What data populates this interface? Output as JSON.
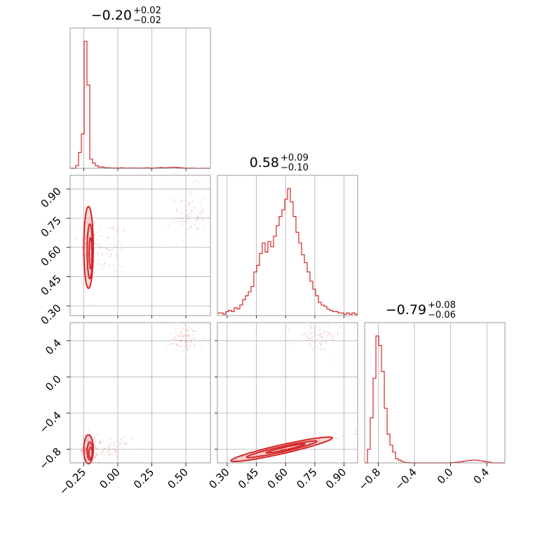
{
  "chart_data": {
    "type": "corner",
    "color": "#d62728",
    "grid": true,
    "parameters": [
      {
        "median": "−0.20",
        "plus": "+0.02",
        "minus": "−0.02",
        "range": [
          -0.35,
          0.68
        ],
        "ticks": [
          -0.25,
          0.0,
          0.25,
          0.5
        ],
        "tick_labels": [
          "−0.25",
          "0.00",
          "0.25",
          "0.50"
        ]
      },
      {
        "median": "0.58",
        "plus": "+0.09",
        "minus": "−0.10",
        "range": [
          0.25,
          0.97
        ],
        "ticks": [
          0.3,
          0.45,
          0.6,
          0.75,
          0.9
        ],
        "tick_labels": [
          "0.30",
          "0.45",
          "0.60",
          "0.75",
          "0.90"
        ]
      },
      {
        "median": "−0.79",
        "plus": "+0.08",
        "minus": "−0.06",
        "range": [
          -0.95,
          0.6
        ],
        "ticks": [
          -0.8,
          -0.4,
          0.0,
          0.4
        ],
        "tick_labels": [
          "−0.8",
          "−0.4",
          "0.0",
          "0.4"
        ]
      }
    ],
    "histograms": [
      {
        "edges": [
          -0.35,
          0.68
        ],
        "counts": [
          0,
          0,
          0.02,
          0.12,
          0.26,
          0.96,
          0.63,
          0.07,
          0.04,
          0.02,
          0.01,
          0.01,
          0.005,
          0.005,
          0.003,
          0.002,
          0.003,
          0.002,
          0.004,
          0.002,
          0.002,
          0.003,
          0.002,
          0.003,
          0.002,
          0.002,
          0.002,
          0.004,
          0.002,
          0.002,
          0.003,
          0.004,
          0.006,
          0.004,
          0.005,
          0.007,
          0.009,
          0.008,
          0.006,
          0.004,
          0.003,
          0.002,
          0,
          0.002,
          0.001,
          0,
          0,
          0.001,
          0,
          0
        ]
      },
      {
        "edges": [
          0.25,
          0.97
        ],
        "counts": [
          0.02,
          0.02,
          0.01,
          0.03,
          0.04,
          0.03,
          0.06,
          0.05,
          0.08,
          0.12,
          0.15,
          0.18,
          0.22,
          0.33,
          0.38,
          0.47,
          0.55,
          0.48,
          0.56,
          0.52,
          0.6,
          0.68,
          0.75,
          0.8,
          0.88,
          0.96,
          0.86,
          0.75,
          0.63,
          0.55,
          0.46,
          0.4,
          0.33,
          0.26,
          0.2,
          0.15,
          0.1,
          0.08,
          0.07,
          0.05,
          0.04,
          0.03,
          0.03,
          0.02,
          0.02,
          0.01,
          0.02,
          0.01,
          0.02,
          0.01
        ]
      },
      {
        "edges": [
          -0.95,
          0.6
        ],
        "counts": [
          0,
          0.1,
          0.33,
          0.62,
          0.93,
          0.86,
          0.67,
          0.4,
          0.21,
          0.13,
          0.08,
          0.03,
          0.02,
          0.01,
          0.003,
          0.002,
          0,
          0,
          0,
          0,
          0,
          0,
          0,
          0,
          0,
          0,
          0,
          0,
          0,
          0,
          0,
          0.002,
          0.004,
          0.005,
          0.008,
          0.012,
          0.015,
          0.018,
          0.02,
          0.02,
          0.018,
          0.015,
          0.012,
          0.008,
          0.005,
          0,
          0,
          0,
          0,
          0
        ]
      }
    ],
    "scatter_clusters": [
      {
        "pair": [
          0,
          1
        ],
        "clusters": [
          {
            "center": [
              -0.21,
              0.6
            ],
            "spread": [
              0.025,
              0.09
            ],
            "n": 140
          },
          {
            "center": [
              -0.07,
              0.6
            ],
            "spread": [
              0.07,
              0.07
            ],
            "n": 60
          },
          {
            "center": [
              0.52,
              0.77
            ],
            "spread": [
              0.06,
              0.07
            ],
            "n": 70
          }
        ]
      },
      {
        "pair": [
          0,
          2
        ],
        "clusters": [
          {
            "center": [
              -0.21,
              -0.79
            ],
            "spread": [
              0.03,
              0.08
            ],
            "n": 120
          },
          {
            "center": [
              -0.07,
              -0.8
            ],
            "spread": [
              0.08,
              0.06
            ],
            "n": 60
          },
          {
            "center": [
              0.5,
              0.42
            ],
            "spread": [
              0.07,
              0.08
            ],
            "n": 80
          }
        ]
      },
      {
        "pair": [
          1,
          2
        ],
        "clusters": [
          {
            "center": [
              0.6,
              -0.8
            ],
            "spread": [
              0.12,
              0.05
            ],
            "n": 140,
            "correlated": true
          },
          {
            "center": [
              0.76,
              0.43
            ],
            "spread": [
              0.06,
              0.08
            ],
            "n": 70
          }
        ]
      }
    ],
    "contours": [
      {
        "pair": [
          0,
          1
        ],
        "levels": [
          {
            "center": [
              -0.215,
              0.6
            ],
            "half": [
              0.035,
              0.21
            ]
          },
          {
            "center": [
              -0.205,
              0.58
            ],
            "half": [
              0.02,
              0.14
            ]
          },
          {
            "center": [
              -0.2,
              0.57
            ],
            "half": [
              0.01,
              0.08
            ]
          }
        ]
      },
      {
        "pair": [
          0,
          2
        ],
        "levels": [
          {
            "center": [
              -0.215,
              -0.8
            ],
            "half": [
              0.035,
              0.16
            ]
          },
          {
            "center": [
              -0.205,
              -0.82
            ],
            "half": [
              0.02,
              0.1
            ]
          },
          {
            "center": [
              -0.2,
              -0.84
            ],
            "half": [
              0.012,
              0.06
            ]
          }
        ]
      },
      {
        "pair": [
          1,
          2
        ],
        "levels": [
          {
            "center": [
              0.58,
              -0.8
            ],
            "half": [
              0.26,
              0.05
            ],
            "slope": 0.88
          },
          {
            "center": [
              0.58,
              -0.8
            ],
            "half": [
              0.18,
              0.03
            ],
            "slope": 0.88
          },
          {
            "center": [
              0.6,
              -0.79
            ],
            "half": [
              0.1,
              0.015
            ],
            "slope": 0.88
          }
        ]
      }
    ]
  }
}
